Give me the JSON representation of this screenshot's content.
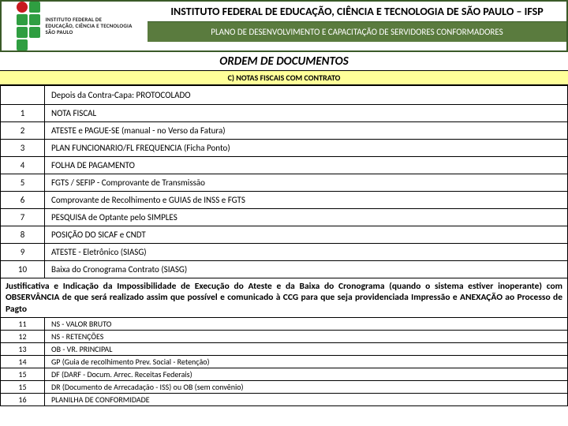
{
  "header": {
    "institution": "INSTITUTO FEDERAL DE EDUCAÇÃO, CIÊNCIA E TECNOLOGIA DE SÃO PAULO – IFSP",
    "plan": "PLANO DE DESENVOLVIMENTO E CAPACITAÇÃO DE SERVIDORES CONFORMADORES",
    "logo_line1": "INSTITUTO FEDERAL DE",
    "logo_line2": "EDUCAÇÃO, CIÊNCIA E TECNOLOGIA",
    "logo_line3": "SÃO PAULO"
  },
  "ordem": "ORDEM DE DOCUMENTOS",
  "section_c": "C) NOTAS FISCAIS COM CONTRATO",
  "contra_capa": "Depois da Contra-Capa: PROTOCOLADO",
  "rows": [
    {
      "n": "1",
      "t": "NOTA FISCAL"
    },
    {
      "n": "2",
      "t": "ATESTE e PAGUE-SE (manual - no Verso da Fatura)"
    },
    {
      "n": "3",
      "t": "PLAN FUNCIONARIO/FL FREQUENCIA (Ficha Ponto)"
    },
    {
      "n": "4",
      "t": "FOLHA DE PAGAMENTO"
    },
    {
      "n": "5",
      "t": "FGTS / SEFIP - Comprovante de Transmissão"
    },
    {
      "n": "6",
      "t": "Comprovante de Recolhimento e GUIAS de INSS e FGTS"
    },
    {
      "n": "7",
      "t": "PESQUISA de Optante pelo SIMPLES"
    },
    {
      "n": "8",
      "t": "POSIÇÃO DO SICAF e CNDT"
    },
    {
      "n": "9",
      "t": "ATESTE - Eletrônico (SIASG)"
    },
    {
      "n": "10",
      "t": "Baixa do Cronograma Contrato (SIASG)"
    }
  ],
  "justificativa": "Justificativa e Indicação da Impossibilidade de Execução do Ateste e da Baixa do Cronograma (quando o sistema estiver inoperante) com OBSERVÂNCIA de que será realizado assim que possível e comunicado à CCG para que seja providenciada Impressão e ANEXAÇÃO ao Processo de Pagto",
  "rows2": [
    {
      "n": "11",
      "t": "NS - VALOR BRUTO"
    },
    {
      "n": "12",
      "t": "NS - RETENÇÕES"
    },
    {
      "n": "13",
      "t": "OB - VR. PRINCIPAL"
    },
    {
      "n": "14",
      "t": "GP (Guia de recolhimento Prev. Social - Retenção)"
    },
    {
      "n": "15",
      "t": "DF (DARF - Docum. Arrec. Receitas Federais)"
    },
    {
      "n": "15",
      "t": "DR (Documento de Arrecadação - ISS) ou OB (sem convênio)"
    },
    {
      "n": "16",
      "t": "PLANILHA DE CONFORMIDADE"
    }
  ]
}
